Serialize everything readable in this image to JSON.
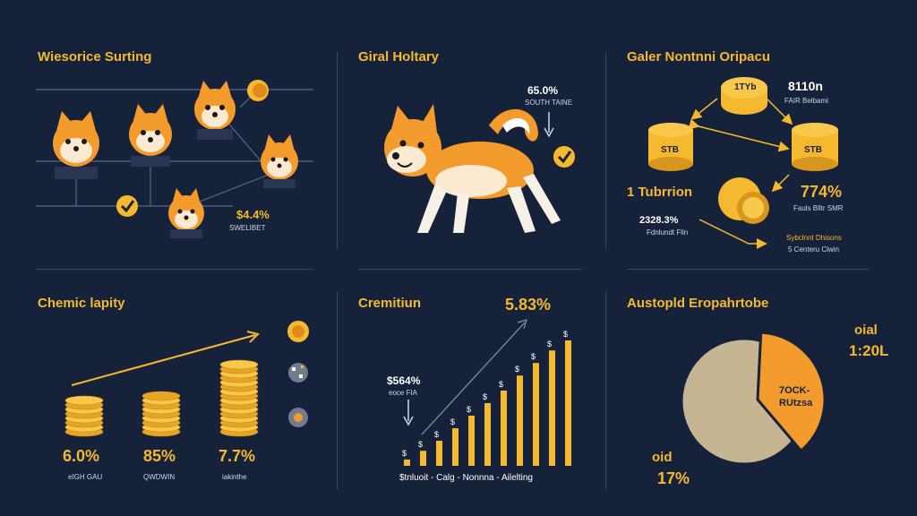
{
  "panels": {
    "p1": {
      "title": "Wiesorice Surting",
      "stat": "$4.4%",
      "stat_caption": "SWELIBET"
    },
    "p2": {
      "title": "Giral Holtary",
      "stat": "65.0%",
      "stat_caption": "SOUTH TAINE"
    },
    "p3": {
      "title": "Galer Nontnni Oripacu",
      "top_value": "8110n",
      "top_caption": "FAIR Belbami",
      "coin_a": "1TYb",
      "coin_b": "STB",
      "coin_c": "STB",
      "left_value": "1 Tubrrion",
      "right_value": "774%",
      "right_caption": "Fauls Blltr SMR",
      "lower_value": "2328.3%",
      "lower_caption": "Fdnlundt Flin",
      "lower_right_caption": "Sybclnnt Dhisons",
      "bottom_caption": "5 Centeru Clwin"
    },
    "p4": {
      "title": "Chemic lapity",
      "stacks": [
        {
          "value": "6.0%",
          "caption": "eIGH GAU"
        },
        {
          "value": "85%",
          "caption": "QWDWIN"
        },
        {
          "value": "7.7%",
          "caption": "iakinthe"
        }
      ]
    },
    "p5": {
      "title": "Cremitiun",
      "top_value": "5.83%",
      "left_value": "$564%",
      "left_caption": "eoce FIA",
      "axis_text": "$tnluoit - Calg - Nonnna - Ailelting",
      "bars": [
        0.05,
        0.12,
        0.2,
        0.3,
        0.4,
        0.5,
        0.6,
        0.72,
        0.82,
        0.92,
        1.0
      ]
    },
    "p6": {
      "title": "Austopld Eropahrtobe",
      "top_label_a": "oial",
      "top_label_b": "1:20L",
      "slice_label_a": "7OCK-",
      "slice_label_b": "RUtzsa",
      "bottom_label_a": "oid",
      "bottom_label_b": "17%",
      "slice_fraction": 0.38
    }
  },
  "colors": {
    "accent": "#f5b930",
    "orange": "#f39b2c",
    "bg": "#16213a",
    "pie_base": "#c6b592"
  }
}
